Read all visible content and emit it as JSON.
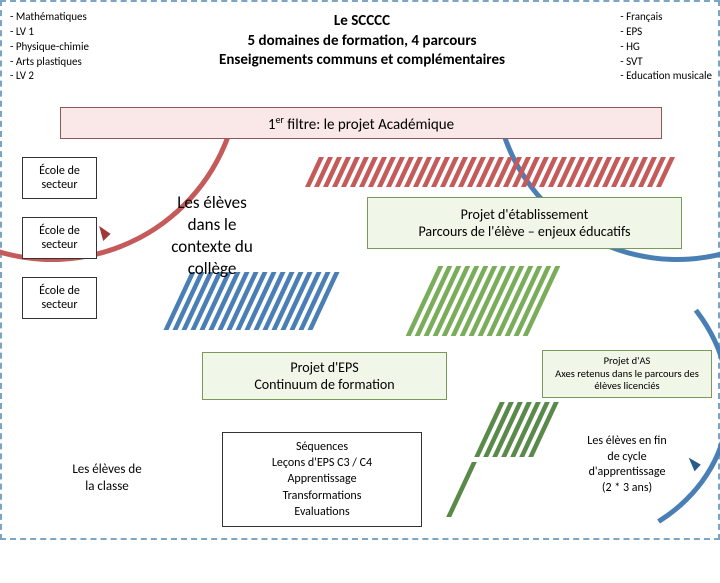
{
  "colors": {
    "blue": "#4a7fb5",
    "red": "#c55a5a",
    "green": "#7aad5a",
    "dkgreen": "#5a8a4a",
    "dkblue": "#2a5a8a",
    "filterBg": "#fae8e8",
    "projBg": "#f0f7e8",
    "filterBorder": "#8a5a5a",
    "projBorder": "#7a9a5a"
  },
  "left_list": [
    "Mathématiques",
    "LV 1",
    "Physique-chimie",
    "Arts plastiques",
    "LV 2"
  ],
  "right_list": [
    "Français",
    "EPS",
    "HG",
    "SVT",
    "Education musicale"
  ],
  "title": {
    "l1": "Le SCCCC",
    "l2": "5 domaines de formation, 4 parcours",
    "l3": "Enseignements communs et complémentaires"
  },
  "filter": {
    "pre": "1",
    "sup": "er",
    "post": " filtre: le projet Académique"
  },
  "ecole": "École de secteur",
  "eleves_college": {
    "l1": "Les élèves",
    "l2": "dans le",
    "l3": "contexte du",
    "l4": "collège"
  },
  "projet_etab": {
    "l1": "Projet d'établissement",
    "l2": "Parcours de l'élève – enjeux éducatifs"
  },
  "projet_eps": {
    "l1": "Projet d'EPS",
    "l2": "Continuum de formation"
  },
  "projet_as": {
    "l1": "Projet d'AS",
    "l2": "Axes retenus dans le parcours des élèves licenciés"
  },
  "sequences": {
    "l1": "Séquences",
    "l2": "Leçons d'EPS C3 / C4",
    "l3": "Apprentissage",
    "l4": "Transformations",
    "l5": "Evaluations"
  },
  "fin_cycle": {
    "l1": "Les élèves en fin",
    "l2": "de cycle",
    "l3": "d'apprentissage",
    "l4": "(2 * 3 ans)"
  },
  "eleves_classe": {
    "l1": "Les élèves de",
    "l2": "la classe"
  }
}
